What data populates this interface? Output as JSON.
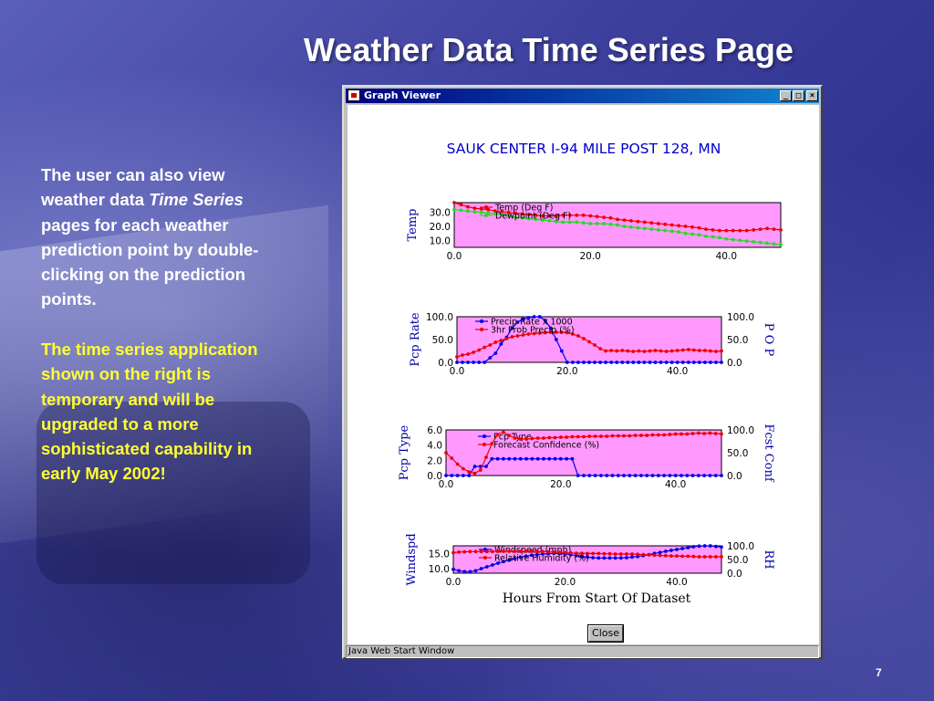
{
  "slide": {
    "title": "Weather Data Time Series Page",
    "para1_a": "The user can also view weather data ",
    "para1_em": "Time Series",
    "para1_b": " pages for each weather prediction point by double-clicking on the prediction points.",
    "para2": "The time series application shown on the right is temporary and will be upgraded to a more sophisticated capability in early May 2002!",
    "page_number": "7"
  },
  "window": {
    "title": "Graph Viewer",
    "minimize": "_",
    "maximize": "□",
    "close_x": "×",
    "close_button": "Close",
    "status": "Java Web Start Window"
  },
  "chart_title": "SAUK CENTER I-94 MILE POST 128, MN",
  "colors": {
    "plot_bg": "#ff99ff",
    "red": "#ee0000",
    "green": "#22dd22",
    "blue": "#0000ee",
    "title": "#0000cc",
    "axis_label": "#0000aa"
  },
  "chart_data": [
    {
      "type": "line",
      "left_label": "Temp",
      "right_label": "",
      "xlabel": "",
      "x_ticks": [
        "0.0",
        "20.0",
        "40.0"
      ],
      "left_ticks": [
        "10.0",
        "20.0",
        "30.0"
      ],
      "right_ticks": [],
      "xlim": [
        0,
        48
      ],
      "ylim_left": [
        5,
        37
      ],
      "ylim_right": null,
      "series": [
        {
          "name": "Temp (Deg F)",
          "axis": "left",
          "color": "#ee0000",
          "values": [
            37,
            35.5,
            34,
            33,
            32.5,
            32,
            31,
            30.5,
            30,
            29.5,
            29,
            28.5,
            28,
            27.5,
            27.5,
            27.5,
            28,
            28,
            28,
            28,
            27.5,
            27,
            26.5,
            26,
            25,
            24.5,
            24,
            23.5,
            23,
            22.5,
            22,
            21.5,
            21,
            20.5,
            20,
            19.5,
            19,
            18,
            17.5,
            17,
            17,
            17,
            17,
            17,
            17.5,
            18,
            18.5,
            18,
            17.5
          ]
        },
        {
          "name": "Dewpoint (Deg F)",
          "axis": "left",
          "color": "#22dd22",
          "values": [
            32,
            31.5,
            31,
            30.5,
            30,
            29.5,
            29,
            28.5,
            27.5,
            26.5,
            26,
            25.5,
            25,
            24.5,
            24,
            23.5,
            23,
            23,
            23,
            22.5,
            22,
            22,
            22,
            21.5,
            21,
            20,
            19.5,
            19,
            18.5,
            18,
            17.5,
            17,
            16.5,
            16,
            15,
            14.5,
            14,
            13,
            12.5,
            12,
            11,
            10.5,
            10,
            9.5,
            9,
            8.5,
            8,
            7.5,
            7
          ]
        }
      ]
    },
    {
      "type": "line",
      "left_label": "Pcp Rate",
      "right_label": "P O P",
      "xlabel": "",
      "x_ticks": [
        "0.0",
        "20.0",
        "40.0"
      ],
      "left_ticks": [
        "0.0",
        "50.0",
        "100.0"
      ],
      "right_ticks": [
        "0.0",
        "50.0",
        "100.0"
      ],
      "xlim": [
        0,
        48
      ],
      "ylim_left": [
        0,
        100
      ],
      "ylim_right": [
        0,
        100
      ],
      "series": [
        {
          "name": "Precip Rate x 1000",
          "axis": "left",
          "color": "#0000ee",
          "values": [
            0,
            0,
            0,
            0,
            0,
            0,
            10,
            20,
            40,
            55,
            75,
            88,
            95,
            98,
            100,
            100,
            92,
            75,
            50,
            25,
            0,
            0,
            0,
            0,
            0,
            0,
            0,
            0,
            0,
            0,
            0,
            0,
            0,
            0,
            0,
            0,
            0,
            0,
            0,
            0,
            0,
            0,
            0,
            0,
            0,
            0,
            0,
            0,
            0
          ]
        },
        {
          "name": "3hr Prob Precip (%)",
          "axis": "left",
          "color": "#ee0000",
          "values": [
            12,
            16,
            18,
            22,
            27,
            33,
            38,
            44,
            48,
            52,
            56,
            58,
            60,
            62,
            63,
            64,
            65,
            66,
            66,
            66,
            65,
            62,
            58,
            52,
            45,
            38,
            30,
            25,
            26,
            25,
            26,
            25,
            24,
            25,
            24,
            25,
            26,
            25,
            24,
            25,
            26,
            27,
            28,
            27,
            26,
            26,
            25,
            24,
            25
          ]
        }
      ]
    },
    {
      "type": "line",
      "left_label": "Pcp Type",
      "right_label": "Fcst Conf",
      "xlabel": "",
      "x_ticks": [
        "0.0",
        "20.0",
        "40.0"
      ],
      "left_ticks": [
        "0.0",
        "2.0",
        "4.0",
        "6.0"
      ],
      "right_ticks": [
        "0.0",
        "50.0",
        "100.0"
      ],
      "xlim": [
        0,
        48
      ],
      "ylim_left": [
        0,
        6
      ],
      "ylim_right": [
        0,
        100
      ],
      "series": [
        {
          "name": "Pcp Type",
          "axis": "left",
          "color": "#0000ee",
          "values": [
            0,
            0,
            0,
            0,
            0,
            1.2,
            1.2,
            1.2,
            2.2,
            2.2,
            2.2,
            2.2,
            2.2,
            2.2,
            2.2,
            2.2,
            2.2,
            2.2,
            2.2,
            2.2,
            2.2,
            2.2,
            2.2,
            0,
            0,
            0,
            0,
            0,
            0,
            0,
            0,
            0,
            0,
            0,
            0,
            0,
            0,
            0,
            0,
            0,
            0,
            0,
            0,
            0,
            0,
            0,
            0,
            0,
            0
          ]
        },
        {
          "name": "Forecast Confidence (%)",
          "axis": "right",
          "color": "#ee0000",
          "values": [
            50,
            38,
            25,
            15,
            8,
            5,
            12,
            40,
            70,
            90,
            95,
            88,
            82,
            80,
            80,
            81,
            82,
            82,
            83,
            83,
            84,
            84,
            85,
            85,
            85,
            86,
            86,
            86,
            86,
            87,
            87,
            87,
            87,
            88,
            88,
            88,
            89,
            89,
            89,
            90,
            91,
            91,
            91,
            92,
            93,
            92,
            93,
            92,
            91
          ]
        }
      ]
    },
    {
      "type": "line",
      "left_label": "Windspd",
      "right_label": "RH",
      "xlabel": "Hours From Start Of Dataset",
      "x_ticks": [
        "0.0",
        "20.0",
        "40.0"
      ],
      "left_ticks": [
        "10.0",
        "15.0"
      ],
      "right_ticks": [
        "0.0",
        "50.0",
        "100.0"
      ],
      "xlim": [
        0,
        48
      ],
      "ylim_left": [
        8.5,
        17.5
      ],
      "ylim_right": [
        0,
        100
      ],
      "series": [
        {
          "name": "Windspeed (mph)",
          "axis": "left",
          "color": "#0000ee",
          "values": [
            9.8,
            9.3,
            9,
            9,
            9.3,
            10,
            10.6,
            11.2,
            11.8,
            12.3,
            12.8,
            13.3,
            13.8,
            14.1,
            14.4,
            14.6,
            14.8,
            14.9,
            15,
            15,
            14.8,
            14.6,
            14.3,
            14,
            13.8,
            13.6,
            13.5,
            13.5,
            13.5,
            13.5,
            13.5,
            13.6,
            13.8,
            14,
            14.3,
            14.6,
            15,
            15.3,
            15.7,
            16,
            16.3,
            16.6,
            16.9,
            17.2,
            17.4,
            17.5,
            17.5,
            17.3,
            17.1
          ]
        },
        {
          "name": "Relative Humidity (%)",
          "axis": "right",
          "color": "#ee0000",
          "values": [
            75,
            77,
            78,
            79,
            79,
            79,
            79,
            79,
            80,
            80,
            80,
            80,
            80,
            80,
            80,
            79,
            79,
            78,
            77,
            76,
            75,
            74,
            73,
            73,
            72,
            72,
            72,
            71,
            71,
            70,
            70,
            70,
            70,
            69,
            68,
            67,
            66,
            65,
            64,
            63,
            63,
            62,
            62,
            61,
            60,
            60,
            60,
            60,
            60
          ]
        }
      ]
    }
  ]
}
